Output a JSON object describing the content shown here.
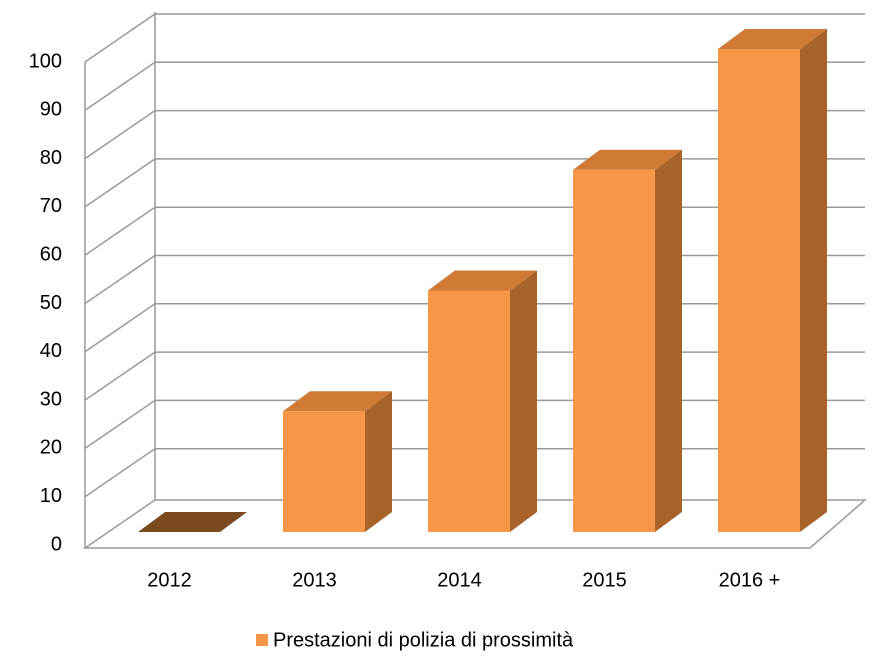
{
  "chart_data": {
    "type": "bar3d",
    "categories": [
      "2012",
      "2013",
      "2014",
      "2015",
      "2016 +"
    ],
    "series": [
      {
        "name": "Prestazioni di polizia di prossimità",
        "color": "#f79646",
        "values": [
          0,
          25,
          50,
          75,
          100
        ]
      }
    ],
    "ylim": [
      0,
      100
    ],
    "yticks": [
      0,
      10,
      20,
      30,
      40,
      50,
      60,
      70,
      80,
      90,
      100
    ],
    "grid": true,
    "legend": "bottom"
  }
}
